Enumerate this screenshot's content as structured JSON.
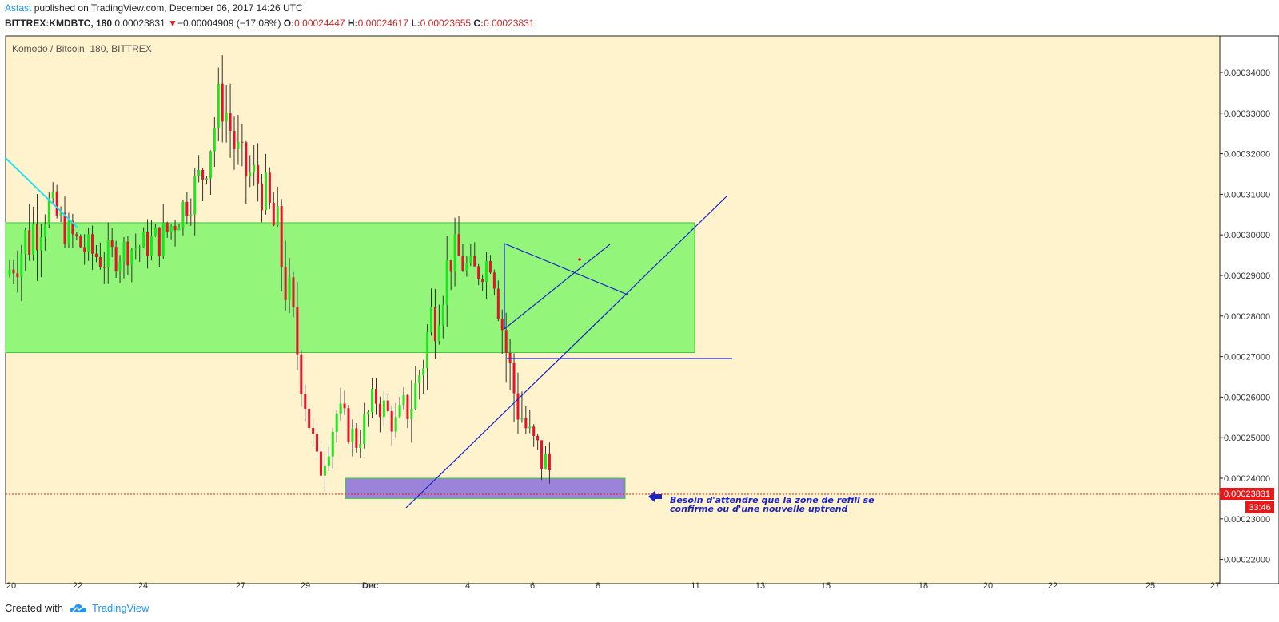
{
  "header": {
    "author": "Astast",
    "published_text": "published on TradingView.com, December 06, 2017 14:26 UTC"
  },
  "legend": {
    "symbol": "BITTREX:KMDBTC, 180",
    "last": "0.00023831",
    "change": "−0.00004909 (−17.08%)",
    "o_label": "O:",
    "o": "0.00024447",
    "h_label": "H:",
    "h": "0.00024617",
    "l_label": "L:",
    "l": "0.00023655",
    "c_label": "C:",
    "c": "0.00023831"
  },
  "footer": {
    "created_with": "Created with",
    "brand": "TradingView"
  },
  "colors": {
    "background": "#fff3cd",
    "up": "#1ee61e",
    "down": "#e8102a",
    "demand_zone": "#93f57a",
    "refill_zone": "#9a83d9",
    "trendline": "#1a23c8",
    "cyan_line": "#27e0f0",
    "price_label": "#e51919"
  },
  "chart_data": {
    "type": "candlestick",
    "title": "Komodo / Bitcoin, 180, BITTREX",
    "x_tick_labels": [
      "20",
      "22",
      "24",
      "27",
      "29",
      "Dec",
      "4",
      "6",
      "8",
      "11",
      "13",
      "15",
      "18",
      "20",
      "22",
      "25",
      "27"
    ],
    "y_tick_labels": [
      "0.00034000",
      "0.00033000",
      "0.00032000",
      "0.00031000",
      "0.00030000",
      "0.00029000",
      "0.00028000",
      "0.00027000",
      "0.00026000",
      "0.00025000",
      "0.00024000",
      "0.00023000",
      "0.00022000"
    ],
    "ylim": [
      0.000216,
      0.0003535
    ],
    "last_price_label": "0.00023831",
    "countdown_label": "33:46",
    "annotation_lines": [
      "Besoin d'attendre que la zone de refill se",
      "confirme ou d'une nouvelle uptrend"
    ],
    "zones": [
      {
        "name": "supply-demand-zone",
        "from_date": "Nov 19",
        "to_date": "Dec 11",
        "low": 0.000271,
        "high": 0.000303
      },
      {
        "name": "refill-zone",
        "from_date": "Nov 30",
        "to_date": "Dec 8 12:00",
        "low": 0.000235,
        "high": 0.00024
      }
    ],
    "candle_summary": {
      "interval": "3h",
      "first_date": "Nov 19",
      "last_date": "Dec 6",
      "period_high": 0.000343,
      "period_low": 0.000225
    },
    "anchors": [
      [
        0.000293,
        0.00029
      ],
      [
        0.000306,
        0.000294
      ],
      [
        0.00031,
        0.000305
      ],
      [
        0.000302,
        0.000299
      ],
      [
        0.000298,
        0.000294
      ],
      [
        0.000296,
        0.000292
      ],
      [
        0.000298,
        0.000295
      ],
      [
        0.000299,
        0.000296
      ],
      [
        0.000302,
        0.000297
      ],
      [
        0.000309,
        0.000305
      ],
      [
        0.000318,
        0.000312
      ],
      [
        0.000339,
        0.00033
      ],
      [
        0.00032,
        0.000312
      ],
      [
        0.000316,
        0.00031
      ],
      [
        0.000303,
        0.000291
      ],
      [
        0.000273,
        0.000266
      ],
      [
        0.000243,
        0.000239
      ],
      [
        0.000258,
        0.000255
      ],
      [
        0.000248,
        0.00025
      ],
      [
        0.000262,
        0.000258
      ],
      [
        0.000254,
        0.000252
      ],
      [
        0.000265,
        0.000256
      ],
      [
        0.000288,
        0.000276
      ],
      [
        0.000298,
        0.000294
      ],
      [
        0.000292,
        0.000288
      ],
      [
        0.000296,
        0.000293
      ],
      [
        0.00027,
        0.000258
      ],
      [
        0.000252,
        0.000246
      ],
      [
        0.000245,
        0.000239
      ]
    ]
  }
}
